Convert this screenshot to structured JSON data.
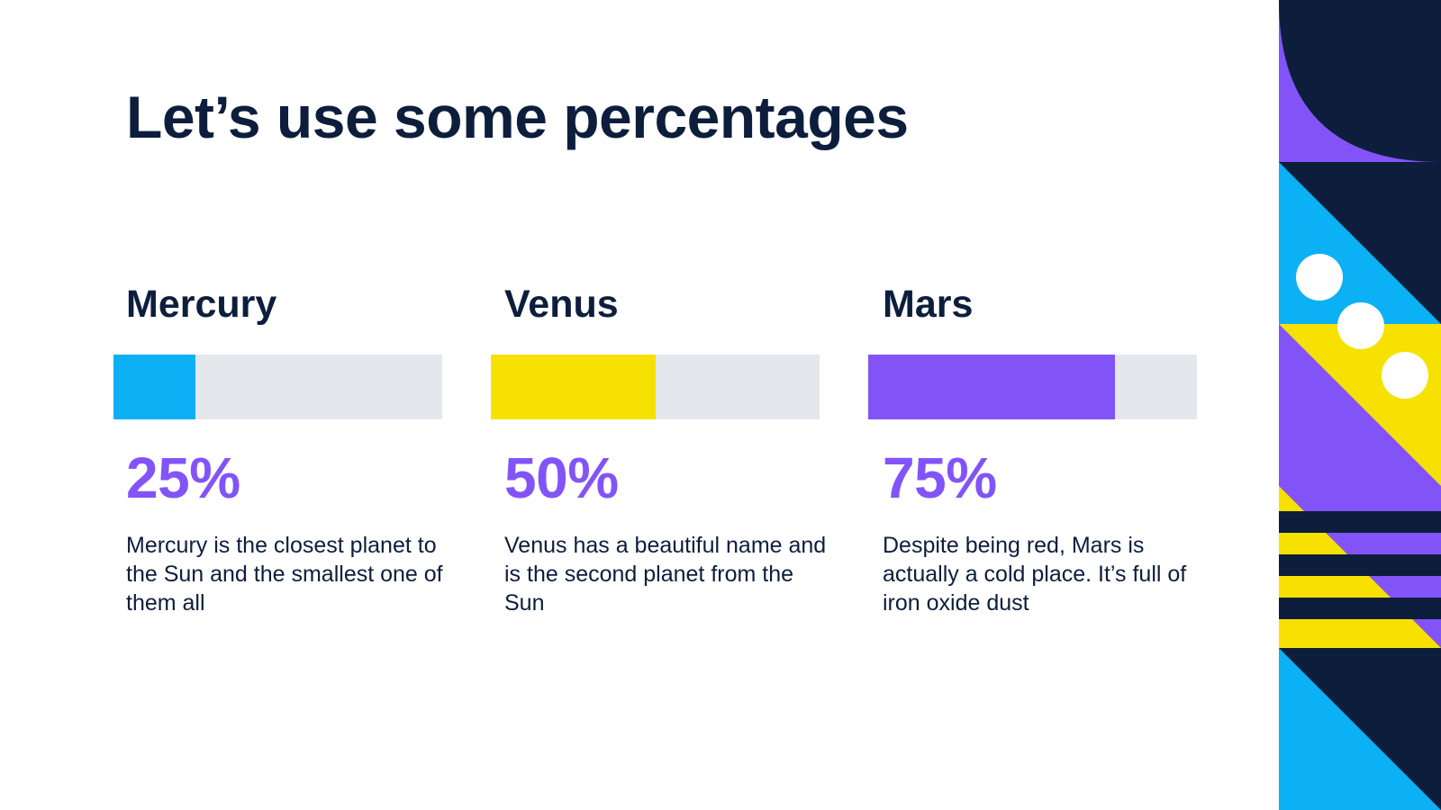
{
  "title": "Let’s use some percentages",
  "items": [
    {
      "name": "Mercury",
      "percent_label": "25%",
      "value_percent": 25,
      "bar_color": "#0cb0f5",
      "description": "Mercury is the closest planet to the Sun and the smallest one of them all"
    },
    {
      "name": "Venus",
      "percent_label": "50%",
      "value_percent": 50,
      "bar_color": "#f6e100",
      "description": "Venus has a beautiful name and is the second planet from the Sun"
    },
    {
      "name": "Mars",
      "percent_label": "75%",
      "value_percent": 75,
      "bar_color": "#8254f8",
      "description": "Despite being red, Mars is actually a cold place. It’s full of iron oxide dust"
    }
  ],
  "colors": {
    "navy": "#0d1e3d",
    "purple": "#8254f8",
    "blue": "#0cb0f5",
    "yellow": "#f6e100",
    "track": "#e4e7ec"
  }
}
